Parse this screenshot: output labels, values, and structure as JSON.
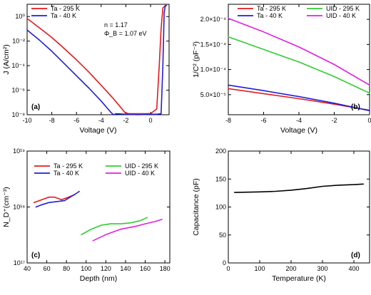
{
  "colors": {
    "red": "#e41a1c",
    "blue": "#1f1fd6",
    "green": "#33cc33",
    "magenta": "#e020e0",
    "black": "#000000"
  },
  "chart_data": [
    {
      "id": "a",
      "type": "line",
      "panel_label": "(a)",
      "xlabel": "Voltage (V)",
      "ylabel": "J (A/cm²)",
      "xlim": [
        -10,
        1.5
      ],
      "ylim": [
        1e-08,
        10
      ],
      "yscale": "log",
      "xticks": [
        -10,
        -8,
        -6,
        -4,
        -2,
        0
      ],
      "yticks": [
        {
          "v": 1,
          "t": "10⁰"
        },
        {
          "v": 0.01,
          "t": "10⁻²"
        },
        {
          "v": 0.0001,
          "t": "10⁻⁴"
        },
        {
          "v": 1e-06,
          "t": "10⁻⁶"
        },
        {
          "v": 1e-08,
          "t": "10⁻⁸"
        }
      ],
      "legend": "top-left",
      "annotations": [
        "n = 1.17",
        "Φ_B = 1.07 eV"
      ],
      "series": [
        {
          "name": "Ta - 295 K",
          "color": "red",
          "x": [
            -10,
            -9,
            -8,
            -7,
            -6,
            -5,
            -4,
            -3,
            -2.5,
            -2.1,
            -1.8,
            -1,
            0,
            0.5,
            0.7,
            0.85,
            1,
            1.2
          ],
          "y": [
            0.7,
            0.12,
            0.02,
            0.0025,
            0.0003,
            3e-05,
            2.5e-06,
            2e-07,
            5e-08,
            1.6e-08,
            1.2e-08,
            1.2e-08,
            1.2e-08,
            3e-08,
            0.0001,
            0.1,
            5,
            8
          ]
        },
        {
          "name": "Ta - 40 K",
          "color": "blue",
          "x": [
            -10,
            -9,
            -8,
            -7,
            -6,
            -5,
            -4,
            -3.2,
            -3,
            -2.8,
            -2,
            -1,
            0,
            0.5,
            0.85,
            1,
            1.1,
            1.2,
            1.3
          ],
          "y": [
            0.08,
            0.012,
            0.0015,
            0.00015,
            1.5e-05,
            1.5e-06,
            1.3e-07,
            1.5e-08,
            1e-08,
            1.2e-08,
            1.1e-08,
            1e-08,
            1.1e-08,
            1.1e-08,
            1.2e-08,
            0.0001,
            2,
            8,
            8
          ]
        }
      ]
    },
    {
      "id": "b",
      "type": "line",
      "panel_label": "(b)",
      "xlabel": "Voltage (V)",
      "ylabel": "1/C² (pF⁻²)",
      "xlim": [
        -8,
        0
      ],
      "ylim": [
        1e-05,
        0.00023
      ],
      "xticks": [
        -8,
        -6,
        -4,
        -2,
        0
      ],
      "yticks": [
        {
          "v": 5e-05,
          "t": "5.0×10⁻⁵"
        },
        {
          "v": 0.0001,
          "t": "1.0×10⁻⁴"
        },
        {
          "v": 0.00015,
          "t": "1.5×10⁻⁴"
        },
        {
          "v": 0.0002,
          "t": "2.0×10⁻⁴"
        }
      ],
      "legend": "top",
      "series": [
        {
          "name": "Ta - 295 K",
          "color": "red",
          "x": [
            -8,
            -6,
            -4,
            -2,
            0
          ],
          "y": [
            6.2e-05,
            5.2e-05,
            4.2e-05,
            3.1e-05,
            1.9e-05
          ]
        },
        {
          "name": "Ta - 40 K",
          "color": "blue",
          "x": [
            -8,
            -6,
            -4,
            -2,
            0
          ],
          "y": [
            6.9e-05,
            5.8e-05,
            4.6e-05,
            3.3e-05,
            1.8e-05
          ]
        },
        {
          "name": "UID - 295 K",
          "color": "green",
          "x": [
            -8,
            -6,
            -4,
            -2,
            0
          ],
          "y": [
            0.000165,
            0.00014,
            0.000115,
            8.6e-05,
            5.3e-05
          ]
        },
        {
          "name": "UID - 40 K",
          "color": "magenta",
          "x": [
            -8,
            -6,
            -4,
            -2,
            0
          ],
          "y": [
            0.000202,
            0.000175,
            0.000145,
            0.00011,
            6.9e-05
          ]
        }
      ]
    },
    {
      "id": "c",
      "type": "line",
      "panel_label": "(c)",
      "xlabel": "Depth (nm)",
      "ylabel": "N_D⁺(cm⁻³)",
      "xlim": [
        40,
        185
      ],
      "ylim": [
        1e+17,
        1e+19
      ],
      "yscale": "log",
      "xticks": [
        40,
        60,
        80,
        100,
        120,
        140,
        160,
        180
      ],
      "yticks": [
        {
          "v": 1e+17,
          "t": "10¹⁷"
        },
        {
          "v": 1e+18,
          "t": "10¹⁸"
        },
        {
          "v": 1e+19,
          "t": "10¹⁹"
        }
      ],
      "legend": "top",
      "series": [
        {
          "name": "Ta - 295 K",
          "color": "red",
          "x": [
            47,
            55,
            62,
            68,
            75,
            82,
            86,
            88
          ],
          "y": [
            1.2e+18,
            1.35e+18,
            1.5e+18,
            1.5e+18,
            1.35e+18,
            1.5e+18,
            1.6e+18,
            1.65e+18
          ]
        },
        {
          "name": "Ta - 40 K",
          "color": "blue",
          "x": [
            49,
            55,
            62,
            70,
            78,
            85,
            90,
            93
          ],
          "y": [
            1e+18,
            1.1e+18,
            1.2e+18,
            1.25e+18,
            1.3e+18,
            1.55e+18,
            1.75e+18,
            1.9e+18
          ]
        },
        {
          "name": "UID - 295 K",
          "color": "green",
          "x": [
            95,
            105,
            115,
            125,
            135,
            145,
            155,
            162
          ],
          "y": [
            3.2e+17,
            4e+17,
            4.7e+17,
            5e+17,
            5e+17,
            5.2e+17,
            5.7e+17,
            6.5e+17
          ]
        },
        {
          "name": "UID - 40 K",
          "color": "magenta",
          "x": [
            107,
            120,
            135,
            150,
            160,
            170,
            177
          ],
          "y": [
            2.5e+17,
            3.2e+17,
            4e+17,
            4.5e+17,
            5e+17,
            5.5e+17,
            6e+17
          ]
        }
      ]
    },
    {
      "id": "d",
      "type": "line",
      "panel_label": "(d)",
      "xlabel": "Temperature (K)",
      "ylabel": "Capacitance (pF)",
      "xlim": [
        0,
        450
      ],
      "ylim": [
        0,
        200
      ],
      "xticks": [
        0,
        100,
        200,
        300,
        400
      ],
      "yticks": [
        {
          "v": 0,
          "t": "0"
        },
        {
          "v": 50,
          "t": "50"
        },
        {
          "v": 100,
          "t": "100"
        },
        {
          "v": 150,
          "t": "150"
        },
        {
          "v": 200,
          "t": "200"
        }
      ],
      "series": [
        {
          "name": "",
          "color": "black",
          "x": [
            20,
            100,
            150,
            200,
            250,
            300,
            350,
            400,
            430
          ],
          "y": [
            126,
            127,
            128,
            130,
            133,
            137,
            139,
            140,
            141
          ]
        }
      ]
    }
  ]
}
